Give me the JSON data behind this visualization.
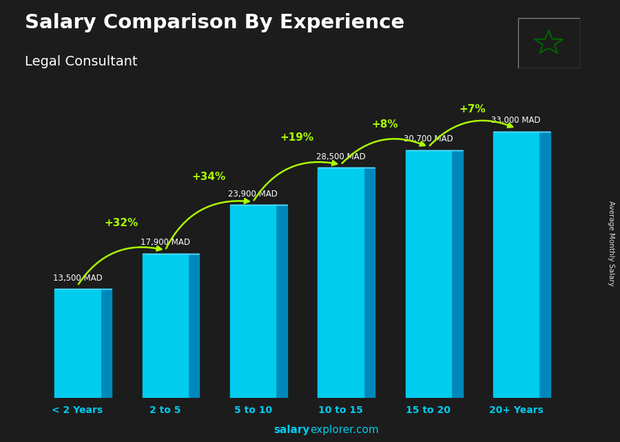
{
  "title_line1": "Salary Comparison By Experience",
  "subtitle": "Legal Consultant",
  "categories": [
    "< 2 Years",
    "2 to 5",
    "5 to 10",
    "10 to 15",
    "15 to 20",
    "20+ Years"
  ],
  "values": [
    13500,
    17900,
    23900,
    28500,
    30700,
    33000
  ],
  "value_labels": [
    "13,500 MAD",
    "17,900 MAD",
    "23,900 MAD",
    "28,500 MAD",
    "30,700 MAD",
    "33,000 MAD"
  ],
  "pct_labels": [
    "+32%",
    "+34%",
    "+19%",
    "+8%",
    "+7%"
  ],
  "face_color": "#00ccee",
  "side_color": "#0088bb",
  "top_color": "#55ddff",
  "bg_color": "#1c1c1c",
  "text_color_white": "#ffffff",
  "text_color_green": "#aaff00",
  "ylabel": "Average Monthly Salary",
  "footer_bold": "salary",
  "footer_light": "explorer.com",
  "ylim": [
    0,
    40000
  ],
  "arc_offsets_y": [
    3800,
    3500,
    3800,
    3200,
    2800
  ],
  "value_label_offsets": [
    800,
    800,
    800,
    800,
    800,
    800
  ]
}
